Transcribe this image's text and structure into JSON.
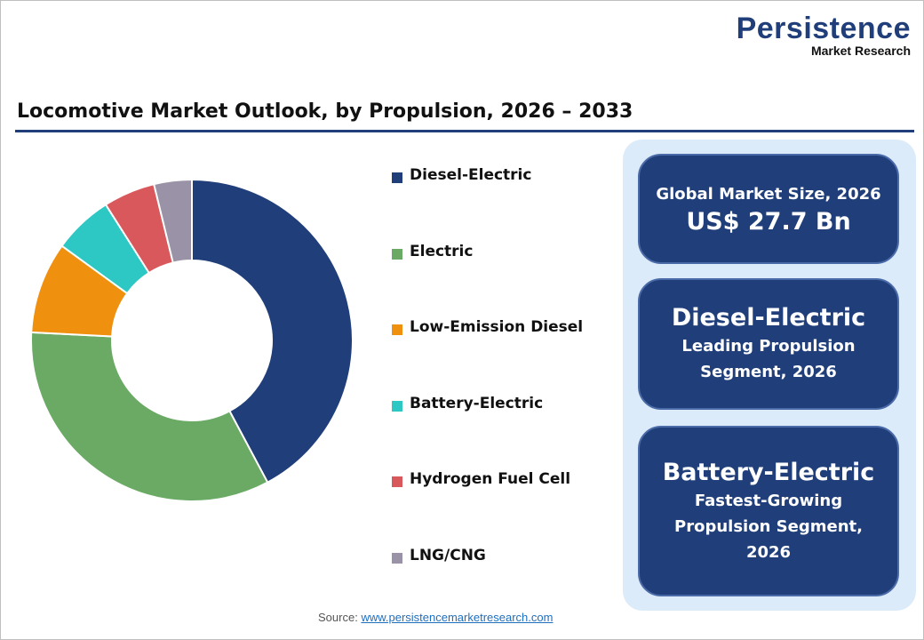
{
  "logo": {
    "line1": "Persistence",
    "line2": "Market Research"
  },
  "chart_data": {
    "type": "pie",
    "donut": true,
    "title": "Locomotive Market Outlook, by Propulsion, 2026 – 2033",
    "categories": [
      "Diesel-Electric",
      "Electric",
      "Low-Emission Diesel",
      "Battery-Electric",
      "Hydrogen Fuel Cell",
      "LNG/CNG"
    ],
    "values": [
      42.2,
      33.6,
      9.2,
      6.0,
      5.2,
      3.8
    ],
    "colors": [
      "#203f7a",
      "#6aaa64",
      "#f0900f",
      "#2ec8c4",
      "#d9585c",
      "#9a93a8"
    ],
    "legend": "right"
  },
  "panel": {
    "box1": {
      "label": "Global Market Size, 2026",
      "value": "US$ 27.7 Bn"
    },
    "box2": {
      "value": "Diesel-Electric",
      "label": "Leading Propulsion Segment, 2026"
    },
    "box3": {
      "value": "Battery-Electric",
      "label": "Fastest-Growing Propulsion Segment, 2026"
    }
  },
  "source": {
    "label": "Source:",
    "link": "www.persistencemarketresearch.com"
  }
}
